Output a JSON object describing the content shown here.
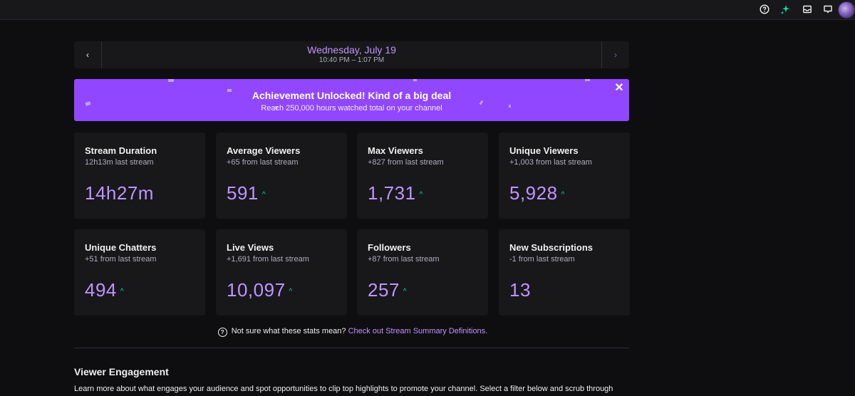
{
  "date_nav": {
    "prev_label": "‹",
    "next_label": "›",
    "date": "Wednesday, July 19",
    "time_range": "10:40 PM – 1:07 PM"
  },
  "achievement": {
    "title": "Achievement Unlocked! Kind of a big deal",
    "description": "Reach 250,000 hours watched total on your channel",
    "close_label": "✕"
  },
  "stats": [
    {
      "label": "Stream Duration",
      "delta": "12h13m last stream",
      "value": "14h27m",
      "trend": ""
    },
    {
      "label": "Average Viewers",
      "delta": "+65 from last stream",
      "value": "591",
      "trend": "up"
    },
    {
      "label": "Max Viewers",
      "delta": "+827 from last stream",
      "value": "1,731",
      "trend": "up"
    },
    {
      "label": "Unique Viewers",
      "delta": "+1,003 from last stream",
      "value": "5,928",
      "trend": "up"
    },
    {
      "label": "Unique Chatters",
      "delta": "+51 from last stream",
      "value": "494",
      "trend": "up"
    },
    {
      "label": "Live Views",
      "delta": "+1,691 from last stream",
      "value": "10,097",
      "trend": "up"
    },
    {
      "label": "Followers",
      "delta": "+87 from last stream",
      "value": "257",
      "trend": "up"
    },
    {
      "label": "New Subscriptions",
      "delta": "-1 from last stream",
      "value": "13",
      "trend": ""
    }
  ],
  "help": {
    "text": "Not sure what these stats mean?",
    "link": "Check out Stream Summary Definitions."
  },
  "engagement": {
    "title": "Viewer Engagement",
    "description": "Learn more about what engages your audience and spot opportunities to clip top highlights to promote your channel. Select a filter below and scrub through"
  },
  "colors": {
    "accent": "#9147ff",
    "value": "#bf94ff",
    "trend_up": "#00e6a7",
    "background": "#0e0e10",
    "card": "#18181b"
  },
  "topbar_icons": [
    "help-icon",
    "sparkle-icon",
    "inbox-icon",
    "whispers-icon",
    "avatar"
  ]
}
